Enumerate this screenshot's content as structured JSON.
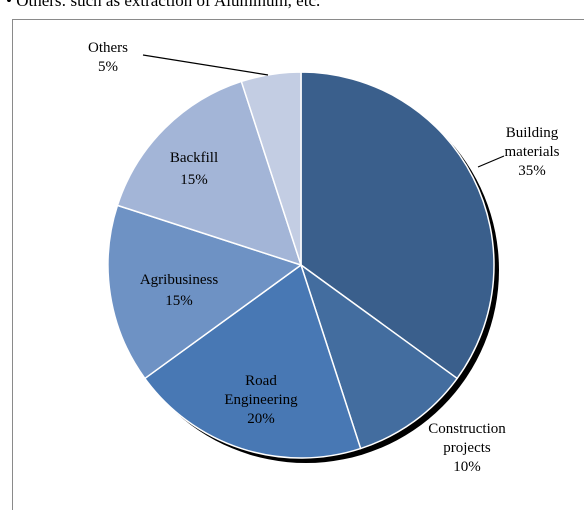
{
  "caption": "• Others: such as extraction of Aluminum, etc.",
  "chart_data": {
    "type": "pie",
    "title": "",
    "slices": [
      {
        "label": [
          "Building",
          "materials"
        ],
        "value": 35,
        "pct": "35%",
        "color": "#3a5f8c"
      },
      {
        "label": [
          "Construction",
          "projects"
        ],
        "value": 10,
        "pct": "10%",
        "color": "#436d9f"
      },
      {
        "label": [
          "Road",
          "Engineering"
        ],
        "value": 20,
        "pct": "20%",
        "color": "#4878b4"
      },
      {
        "label": [
          "Agribusiness"
        ],
        "value": 15,
        "pct": "15%",
        "color": "#6e92c4"
      },
      {
        "label": [
          "Backfill"
        ],
        "value": 15,
        "pct": "15%",
        "color": "#a3b5d7"
      },
      {
        "label": [
          "Others"
        ],
        "value": 5,
        "pct": "5%",
        "color": "#c3cde3"
      }
    ],
    "start_angle_deg": 0,
    "direction": "clockwise",
    "legend": "none"
  }
}
